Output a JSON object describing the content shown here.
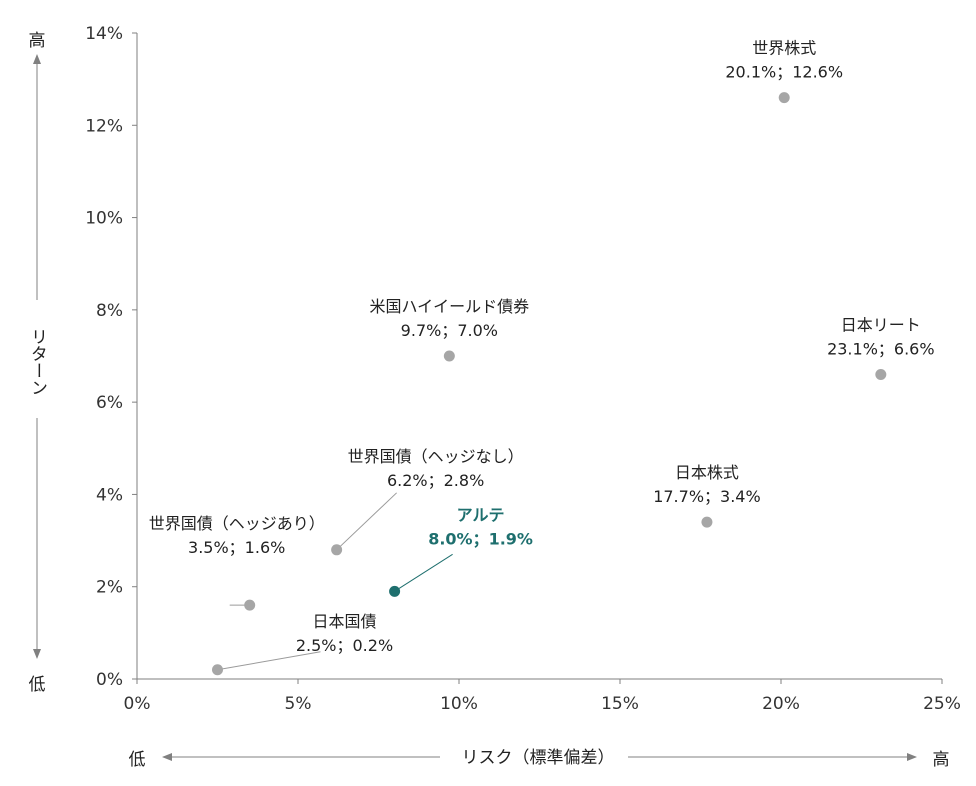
{
  "chart_data": {
    "type": "scatter",
    "xlabel": "リスク（標準偏差）",
    "ylabel": "リターン",
    "x_low": "低",
    "x_high": "高",
    "y_low": "低",
    "y_high": "高",
    "xlim": [
      0,
      25
    ],
    "ylim": [
      0,
      14
    ],
    "x_ticks": [
      0,
      5,
      10,
      15,
      20,
      25
    ],
    "x_tick_labels": [
      "0%",
      "5%",
      "10%",
      "15%",
      "20%",
      "25%"
    ],
    "y_ticks": [
      0,
      2,
      4,
      6,
      8,
      10,
      12,
      14
    ],
    "y_tick_labels": [
      "0%",
      "2%",
      "4%",
      "6%",
      "8%",
      "10%",
      "12%",
      "14%"
    ],
    "grid": false,
    "colors": {
      "point": "#a6a6a6",
      "highlight": "#1e6f6e",
      "axis": "#808080"
    },
    "points": [
      {
        "name": "世界株式",
        "value_label": "20.1%；12.6%",
        "x": 20.1,
        "y": 12.6,
        "highlight": false
      },
      {
        "name": "米国ハイイールド債券",
        "value_label": "9.7%；7.0%",
        "x": 9.7,
        "y": 7.0,
        "highlight": false
      },
      {
        "name": "日本リート",
        "value_label": "23.1%；6.6%",
        "x": 23.1,
        "y": 6.6,
        "highlight": false
      },
      {
        "name": "世界国債（ヘッジなし）",
        "value_label": "6.2%；2.8%",
        "x": 6.2,
        "y": 2.8,
        "highlight": false
      },
      {
        "name": "日本株式",
        "value_label": "17.7%；3.4%",
        "x": 17.7,
        "y": 3.4,
        "highlight": false
      },
      {
        "name": "世界国債（ヘッジあり）",
        "value_label": "3.5%；1.6%",
        "x": 3.5,
        "y": 1.6,
        "highlight": false
      },
      {
        "name": "アルテ",
        "value_label": "8.0%；1.9%",
        "x": 8.0,
        "y": 1.9,
        "highlight": true
      },
      {
        "name": "日本国債",
        "value_label": "2.5%；0.2%",
        "x": 2.5,
        "y": 0.2,
        "highlight": false
      }
    ]
  }
}
